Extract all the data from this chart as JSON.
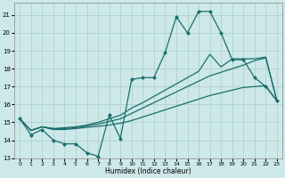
{
  "xlabel": "Humidex (Indice chaleur)",
  "background_color": "#cde8e8",
  "grid_color": "#aacccc",
  "line_color": "#1a6e6e",
  "xlim": [
    -0.5,
    23.5
  ],
  "ylim": [
    13,
    21.7
  ],
  "yticks": [
    13,
    14,
    15,
    16,
    17,
    18,
    19,
    20,
    21
  ],
  "xticks": [
    0,
    1,
    2,
    3,
    4,
    5,
    6,
    7,
    8,
    9,
    10,
    11,
    12,
    13,
    14,
    15,
    16,
    17,
    18,
    19,
    20,
    21,
    22,
    23
  ],
  "series": [
    {
      "name": "main_jagged",
      "x": [
        0,
        1,
        2,
        3,
        4,
        5,
        6,
        7,
        8,
        9,
        10,
        11,
        12,
        13,
        14,
        15,
        16,
        17,
        18,
        19,
        20,
        21,
        22,
        23
      ],
      "y": [
        15.2,
        14.3,
        14.6,
        14.0,
        13.8,
        13.8,
        13.3,
        13.1,
        15.4,
        14.1,
        17.4,
        17.5,
        17.5,
        18.9,
        20.9,
        20.0,
        21.2,
        21.2,
        20.0,
        18.5,
        18.5,
        17.5,
        17.0,
        16.2
      ],
      "marker": "D",
      "markersize": 2.0,
      "linewidth": 0.9
    },
    {
      "name": "line_low",
      "x": [
        0,
        1,
        2,
        3,
        4,
        5,
        6,
        7,
        8,
        9,
        10,
        11,
        12,
        13,
        14,
        15,
        16,
        17,
        18,
        19,
        20,
        21,
        22,
        23
      ],
      "y": [
        15.2,
        14.55,
        14.75,
        14.6,
        14.6,
        14.65,
        14.72,
        14.78,
        14.85,
        14.95,
        15.1,
        15.3,
        15.5,
        15.7,
        15.9,
        16.1,
        16.3,
        16.5,
        16.65,
        16.8,
        16.95,
        17.0,
        17.05,
        16.2
      ],
      "marker": null,
      "markersize": 0,
      "linewidth": 0.9
    },
    {
      "name": "line_mid",
      "x": [
        0,
        1,
        2,
        3,
        4,
        5,
        6,
        7,
        8,
        9,
        10,
        11,
        12,
        13,
        14,
        15,
        16,
        17,
        18,
        19,
        20,
        21,
        22,
        23
      ],
      "y": [
        15.2,
        14.55,
        14.75,
        14.65,
        14.65,
        14.7,
        14.8,
        14.9,
        15.05,
        15.2,
        15.5,
        15.8,
        16.1,
        16.4,
        16.7,
        17.0,
        17.3,
        17.6,
        17.8,
        18.0,
        18.2,
        18.45,
        18.6,
        16.2
      ],
      "marker": null,
      "markersize": 0,
      "linewidth": 0.9
    },
    {
      "name": "line_high",
      "x": [
        0,
        1,
        2,
        3,
        4,
        5,
        6,
        7,
        8,
        9,
        10,
        11,
        12,
        13,
        14,
        15,
        16,
        17,
        18,
        19,
        20,
        21,
        22,
        23
      ],
      "y": [
        15.2,
        14.55,
        14.75,
        14.65,
        14.7,
        14.75,
        14.85,
        15.0,
        15.2,
        15.4,
        15.8,
        16.1,
        16.45,
        16.8,
        17.15,
        17.5,
        17.85,
        18.8,
        18.1,
        18.55,
        18.55,
        18.55,
        18.65,
        16.2
      ],
      "marker": null,
      "markersize": 0,
      "linewidth": 0.9
    }
  ]
}
